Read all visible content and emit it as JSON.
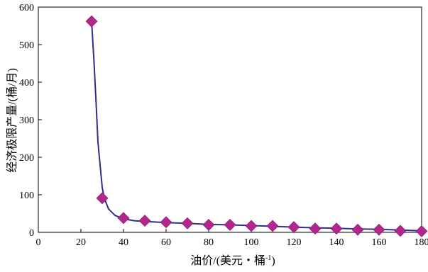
{
  "chart_data": {
    "type": "line",
    "title": "",
    "xlabel_pre": "油价/(美元・桶",
    "xlabel_sup": "-1",
    "xlabel_post": ")",
    "ylabel": "经济极限产量/(桶/月)",
    "xlim": [
      0,
      180
    ],
    "ylim": [
      0,
      600
    ],
    "x_ticks": [
      0,
      20,
      40,
      60,
      80,
      100,
      120,
      140,
      160,
      180
    ],
    "y_ticks": [
      0,
      100,
      200,
      300,
      400,
      500,
      600
    ],
    "grid": false,
    "series": [
      {
        "color": "#2b2f8f",
        "markers": false,
        "x": [
          25,
          26,
          27,
          28,
          29,
          30,
          31,
          33,
          36,
          40,
          45,
          50,
          60,
          70,
          80,
          90,
          100,
          110,
          120,
          130,
          140,
          150,
          160,
          170,
          180
        ],
        "y": [
          562,
          470,
          360,
          240,
          180,
          120,
          90,
          62,
          45,
          36,
          31,
          29,
          26,
          24,
          21,
          20,
          18,
          16,
          14,
          12,
          11,
          9,
          8,
          6,
          4
        ]
      },
      {
        "color": "#b5258f",
        "markers": true,
        "marker": "diamond",
        "x": [
          25,
          30,
          40,
          50,
          60,
          70,
          80,
          90,
          100,
          110,
          120,
          130,
          140,
          150,
          160,
          170,
          180
        ],
        "y": [
          562,
          91,
          38,
          31,
          27,
          24,
          20,
          20,
          17,
          17,
          14,
          10,
          10,
          7,
          7,
          4,
          3
        ]
      }
    ]
  }
}
